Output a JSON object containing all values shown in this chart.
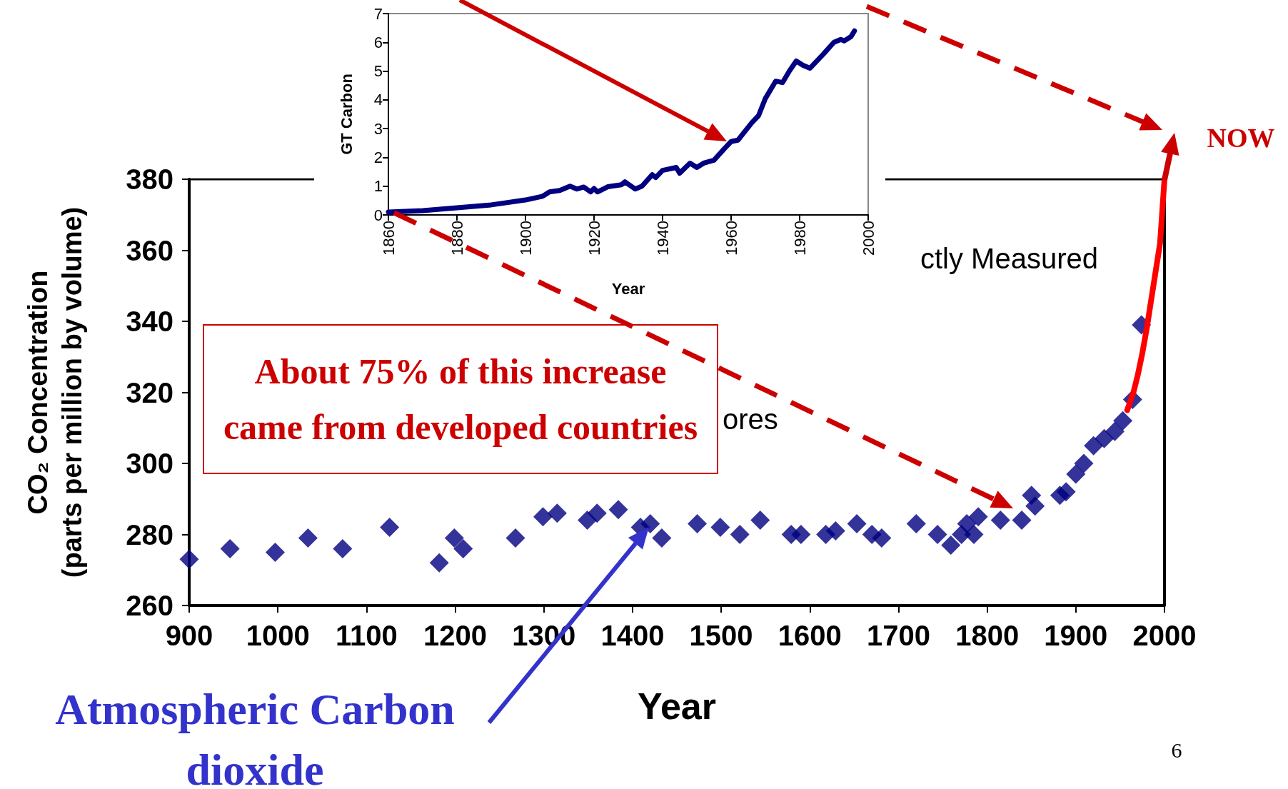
{
  "chart_data": [
    {
      "type": "scatter",
      "xlabel": "Year",
      "ylabel": "CO₂ Concentration\n(parts per million by volume)",
      "xlim": [
        900,
        2000
      ],
      "xticks": [
        900,
        1000,
        1100,
        1200,
        1300,
        1400,
        1500,
        1600,
        1700,
        1800,
        1900,
        2000
      ],
      "ylim": [
        260,
        380
      ],
      "yticks": [
        260,
        280,
        300,
        320,
        340,
        360,
        380
      ],
      "grid": false,
      "marker": "diamond",
      "series": [
        {
          "color": "#000080",
          "x": [
            900,
            946,
            997,
            1034,
            1073,
            1126,
            1182,
            1199,
            1209,
            1268,
            1299,
            1315,
            1349,
            1360,
            1384,
            1409,
            1420,
            1433,
            1473,
            1499,
            1521,
            1544,
            1579,
            1590,
            1618,
            1629,
            1653,
            1670,
            1681,
            1720,
            1744,
            1759,
            1771,
            1777,
            1785,
            1790,
            1815,
            1839,
            1850,
            1854,
            1877,
            1882,
            1889,
            1900,
            1909,
            1920,
            1932,
            1944,
            1953,
            1964,
            1974
          ],
          "values": [
            273,
            276,
            275,
            279,
            276,
            282,
            272,
            279,
            276,
            279,
            285,
            286,
            284,
            286,
            287,
            282,
            283,
            279,
            283,
            282,
            280,
            284,
            280,
            280,
            280,
            281,
            283,
            280,
            279,
            283,
            280,
            277,
            280,
            283,
            280,
            285,
            284,
            284,
            291,
            288,
            null,
            291,
            292,
            297,
            300,
            305,
            307,
            309,
            312,
            318,
            339
          ]
        },
        {
          "type": "line",
          "color": "#ff0000",
          "marker": "none",
          "x": [
            1958,
            1965,
            1970,
            1975,
            1980,
            1985,
            1990,
            1995,
            2000
          ],
          "values": [
            315,
            320,
            325,
            331,
            338,
            346,
            354,
            362,
            380
          ]
        }
      ],
      "annotations": [
        "About 75% of this increase\ncame from developed countries",
        "ctly Measured",
        "ores",
        "NOW",
        "Atmospheric Carbon\ndioxide",
        "6"
      ]
    },
    {
      "type": "line",
      "xlabel": "Year",
      "ylabel": "GT Carbon",
      "xlim": [
        1860,
        2000
      ],
      "xticks": [
        1860,
        1880,
        1900,
        1920,
        1940,
        1960,
        1980,
        2000
      ],
      "ylim": [
        0,
        7
      ],
      "yticks": [
        0,
        1,
        2,
        3,
        4,
        5,
        6,
        7
      ],
      "grid": false,
      "marker": "none",
      "series": [
        {
          "color": "#000080",
          "x": [
            1860,
            1870,
            1880,
            1885,
            1890,
            1893,
            1900,
            1905,
            1907,
            1910,
            1913,
            1915,
            1917,
            1919,
            1920,
            1921,
            1924,
            1928,
            1929,
            1932,
            1934,
            1937,
            1938,
            1940,
            1944,
            1945,
            1948,
            1950,
            1952,
            1955,
            1958,
            1960,
            1962,
            1966,
            1968,
            1970,
            1973,
            1975,
            1977,
            1979,
            1981,
            1983,
            1987,
            1990,
            1992,
            1993,
            1995,
            1996
          ],
          "values": [
            0.1,
            0.15,
            0.25,
            0.3,
            0.35,
            0.4,
            0.52,
            0.65,
            0.8,
            0.85,
            1.0,
            0.9,
            0.97,
            0.8,
            0.92,
            0.8,
            0.98,
            1.05,
            1.15,
            0.9,
            1.0,
            1.4,
            1.3,
            1.55,
            1.65,
            1.45,
            1.8,
            1.65,
            1.8,
            1.9,
            2.3,
            2.55,
            2.6,
            3.2,
            3.45,
            4.05,
            4.65,
            4.6,
            5.0,
            5.35,
            5.2,
            5.1,
            5.6,
            6.0,
            6.1,
            6.05,
            6.2,
            6.4
          ]
        }
      ]
    }
  ]
}
